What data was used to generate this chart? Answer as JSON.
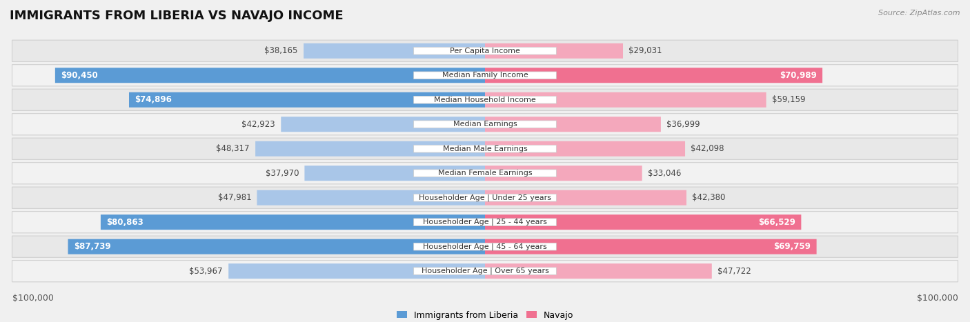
{
  "title": "IMMIGRANTS FROM LIBERIA VS NAVAJO INCOME",
  "source": "Source: ZipAtlas.com",
  "categories": [
    "Per Capita Income",
    "Median Family Income",
    "Median Household Income",
    "Median Earnings",
    "Median Male Earnings",
    "Median Female Earnings",
    "Householder Age | Under 25 years",
    "Householder Age | 25 - 44 years",
    "Householder Age | 45 - 64 years",
    "Householder Age | Over 65 years"
  ],
  "liberia_values": [
    38165,
    90450,
    74896,
    42923,
    48317,
    37970,
    47981,
    80863,
    87739,
    53967
  ],
  "navajo_values": [
    29031,
    70989,
    59159,
    36999,
    42098,
    33046,
    42380,
    66529,
    69759,
    47722
  ],
  "liberia_labels": [
    "$38,165",
    "$90,450",
    "$74,896",
    "$42,923",
    "$48,317",
    "$37,970",
    "$47,981",
    "$80,863",
    "$87,739",
    "$53,967"
  ],
  "navajo_labels": [
    "$29,031",
    "$70,989",
    "$59,159",
    "$36,999",
    "$42,098",
    "$33,046",
    "$42,380",
    "$66,529",
    "$69,759",
    "$47,722"
  ],
  "max_value": 100000,
  "liberia_color_full": "#5B9BD5",
  "liberia_color_light": "#A9C6E8",
  "navajo_color_full": "#F07090",
  "navajo_color_light": "#F4A8BC",
  "liberia_threshold": 60000,
  "navajo_threshold": 60000,
  "bg_color": "#f0f0f0",
  "xlabel_left": "$100,000",
  "xlabel_right": "$100,000",
  "legend_liberia": "Immigrants from Liberia",
  "legend_navajo": "Navajo",
  "title_fontsize": 13,
  "label_fontsize": 8.5,
  "category_fontsize": 8.0
}
